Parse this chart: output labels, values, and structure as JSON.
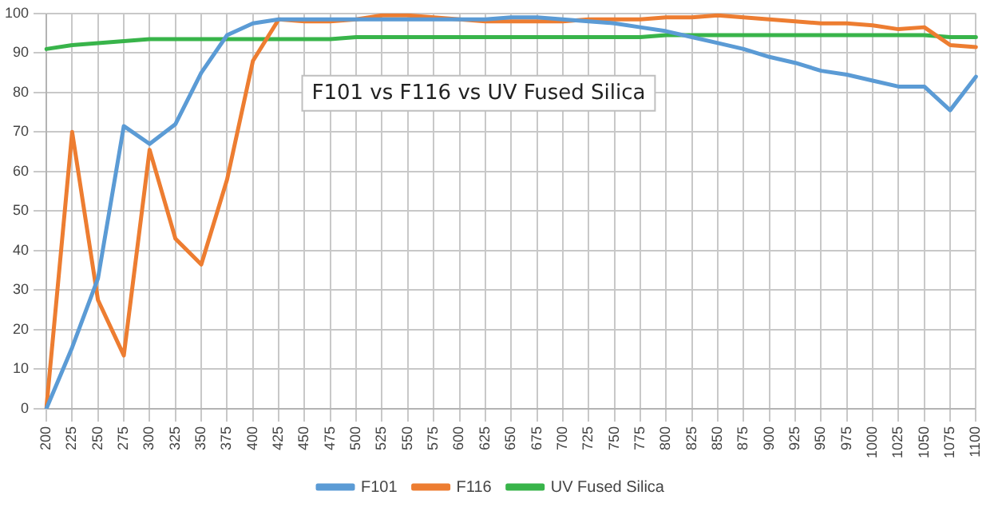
{
  "chart_data": {
    "type": "line",
    "title": "F101 vs F116 vs UV Fused Silica",
    "categories": [
      "200",
      "225",
      "250",
      "275",
      "300",
      "325",
      "350",
      "375",
      "400",
      "425",
      "450",
      "475",
      "500",
      "525",
      "550",
      "575",
      "600",
      "625",
      "650",
      "675",
      "700",
      "725",
      "750",
      "775",
      "800",
      "825",
      "850",
      "875",
      "900",
      "925",
      "950",
      "975",
      "1000",
      "1025",
      "1050",
      "1075",
      "1100"
    ],
    "series": [
      {
        "name": "F101",
        "color": "#5b9bd5",
        "values": [
          0,
          15.5,
          33,
          71.5,
          67,
          72,
          85,
          94.5,
          97.5,
          98.5,
          98.5,
          98.5,
          98.5,
          98.5,
          98.5,
          98.5,
          98.5,
          98.5,
          99,
          99,
          98.5,
          98,
          97.5,
          96.5,
          95.5,
          94,
          92.5,
          91,
          89,
          87.5,
          85.5,
          84.5,
          83,
          81.5,
          81.5,
          75.5,
          84
        ]
      },
      {
        "name": "F116",
        "color": "#ed7d31",
        "values": [
          0,
          70,
          27.5,
          13.5,
          65.5,
          43,
          36.5,
          58,
          88,
          98.5,
          98,
          98,
          98.5,
          99.5,
          99.5,
          99,
          98.5,
          98,
          98,
          98,
          98,
          98.5,
          98.5,
          98.5,
          99,
          99,
          99.5,
          99,
          98.5,
          98,
          97.5,
          97.5,
          97,
          96,
          96.5,
          92,
          91.5
        ]
      },
      {
        "name": "UV Fused Silica",
        "color": "#38b44a",
        "values": [
          91,
          92,
          92.5,
          93,
          93.5,
          93.5,
          93.5,
          93.5,
          93.5,
          93.5,
          93.5,
          93.5,
          94,
          94,
          94,
          94,
          94,
          94,
          94,
          94,
          94,
          94,
          94,
          94,
          94.5,
          94.5,
          94.5,
          94.5,
          94.5,
          94.5,
          94.5,
          94.5,
          94.5,
          94.5,
          94.5,
          94,
          94
        ]
      }
    ],
    "ylim": [
      0,
      100
    ],
    "yticks": [
      0,
      10,
      20,
      30,
      40,
      50,
      60,
      70,
      80,
      90,
      100
    ],
    "grid": true,
    "legend": "bottom",
    "marker": "none",
    "line_style": "solid"
  }
}
